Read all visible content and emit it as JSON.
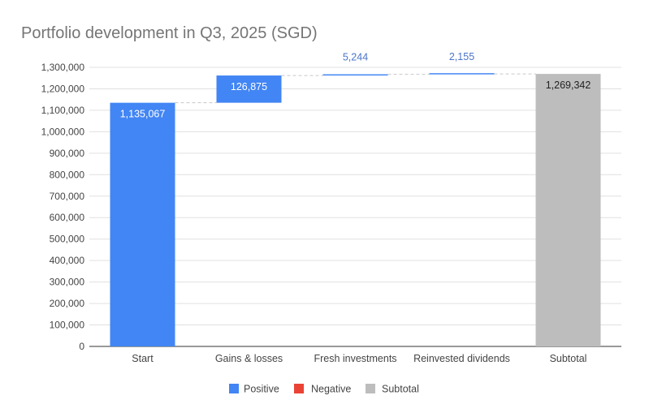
{
  "chart_data": {
    "type": "waterfall",
    "title": "Portfolio development in Q3, 2025 (SGD)",
    "xlabel": "",
    "ylabel": "",
    "ylim": [
      0,
      1300000
    ],
    "yticks": [
      0,
      100000,
      200000,
      300000,
      400000,
      500000,
      600000,
      700000,
      800000,
      900000,
      1000000,
      1100000,
      1200000,
      1300000
    ],
    "ytick_labels": [
      "0",
      "100,000",
      "200,000",
      "300,000",
      "400,000",
      "500,000",
      "600,000",
      "700,000",
      "800,000",
      "900,000",
      "1,000,000",
      "1,100,000",
      "1,200,000",
      "1,300,000"
    ],
    "categories": [
      "Start",
      "Gains & losses",
      "Fresh investments",
      "Reinvested dividends",
      "Subtotal"
    ],
    "steps": [
      {
        "category": "Start",
        "kind": "positive",
        "value": 1135067,
        "label": "1,135,067"
      },
      {
        "category": "Gains & losses",
        "kind": "positive",
        "value": 126875,
        "label": "126,875"
      },
      {
        "category": "Fresh investments",
        "kind": "positive",
        "value": 5244,
        "label": "5,244"
      },
      {
        "category": "Reinvested dividends",
        "kind": "positive",
        "value": 2155,
        "label": "2,155"
      },
      {
        "category": "Subtotal",
        "kind": "subtotal",
        "value": 1269342,
        "label": "1,269,342"
      }
    ],
    "legend": [
      {
        "name": "Positive",
        "color": "#4285F4"
      },
      {
        "name": "Negative",
        "color": "#EA4335"
      },
      {
        "name": "Subtotal",
        "color": "#BDBDBD"
      }
    ],
    "legend_position": "bottom",
    "grid": true,
    "colors": {
      "positive": "#4285F4",
      "negative": "#EA4335",
      "subtotal": "#BDBDBD",
      "connector": "#C7C7C7"
    }
  }
}
